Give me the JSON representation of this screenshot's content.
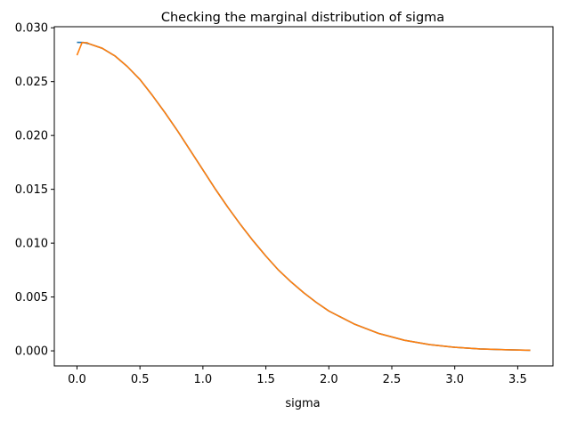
{
  "chart_data": {
    "type": "line",
    "title": "Checking the marginal distribution of sigma",
    "xlabel": "sigma",
    "ylabel": "",
    "xlim": [
      -0.18,
      3.78
    ],
    "ylim": [
      -0.0014,
      0.0301
    ],
    "xticks": [
      0.0,
      0.5,
      1.0,
      1.5,
      2.0,
      2.5,
      3.0,
      3.5
    ],
    "xtick_labels": [
      "0.0",
      "0.5",
      "1.0",
      "1.5",
      "2.0",
      "2.5",
      "3.0",
      "3.5"
    ],
    "yticks": [
      0.0,
      0.005,
      0.01,
      0.015,
      0.02,
      0.025,
      0.03
    ],
    "ytick_labels": [
      "0.000",
      "0.005",
      "0.010",
      "0.015",
      "0.020",
      "0.025",
      "0.030"
    ],
    "grid": false,
    "legend": false,
    "series": [
      {
        "color": "#1f77b4",
        "x": [
          0.0,
          0.05,
          0.1,
          0.2,
          0.3,
          0.4,
          0.5,
          0.6,
          0.7,
          0.8,
          0.9,
          1.0,
          1.1,
          1.2,
          1.3,
          1.4,
          1.5,
          1.6,
          1.7,
          1.8,
          1.9,
          2.0,
          2.2,
          2.4,
          2.6,
          2.8,
          3.0,
          3.2,
          3.4,
          3.6
        ],
        "values": [
          0.02865,
          0.02864,
          0.0285,
          0.0281,
          0.0274,
          0.0264,
          0.0252,
          0.0237,
          0.0221,
          0.0204,
          0.0186,
          0.0168,
          0.015,
          0.0133,
          0.0117,
          0.0102,
          0.0088,
          0.0075,
          0.0064,
          0.0054,
          0.0045,
          0.0037,
          0.0025,
          0.0016,
          0.00098,
          0.00058,
          0.00033,
          0.00018,
          0.0001,
          5e-05
        ]
      },
      {
        "color": "#ff7f0e",
        "x": [
          0.0,
          0.04,
          0.08,
          0.1,
          0.2,
          0.3,
          0.4,
          0.5,
          0.6,
          0.7,
          0.8,
          0.9,
          1.0,
          1.1,
          1.2,
          1.3,
          1.4,
          1.5,
          1.6,
          1.7,
          1.8,
          1.9,
          2.0,
          2.2,
          2.4,
          2.6,
          2.8,
          3.0,
          3.2,
          3.4,
          3.6
        ],
        "values": [
          0.02745,
          0.02862,
          0.02862,
          0.0285,
          0.0281,
          0.0274,
          0.0264,
          0.0252,
          0.0237,
          0.0221,
          0.0204,
          0.0186,
          0.0168,
          0.015,
          0.0133,
          0.0117,
          0.0102,
          0.0088,
          0.0075,
          0.0064,
          0.0054,
          0.0045,
          0.0037,
          0.0025,
          0.0016,
          0.00098,
          0.00058,
          0.00033,
          0.00018,
          0.0001,
          5e-05
        ]
      }
    ]
  }
}
